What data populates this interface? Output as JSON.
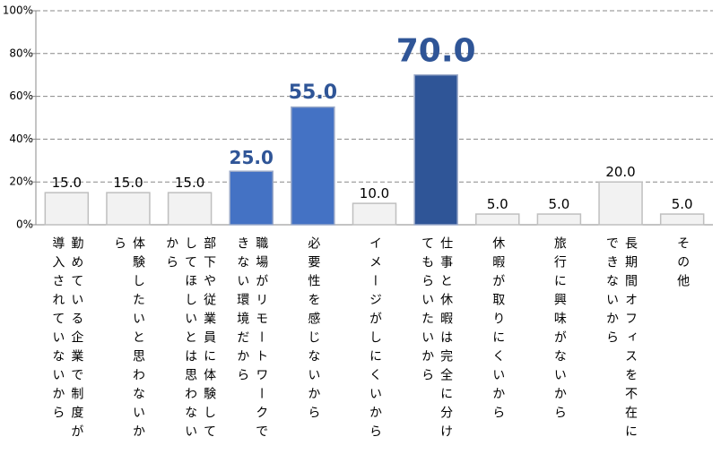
{
  "chart_data": {
    "type": "bar",
    "categories": [
      "勤めている企業で制度が導入されていないから",
      "体験したいと思わないから",
      "部下や従業員に体験してしてほしいとは思わないから",
      "職場がリモートワークできない環境だから",
      "必要性を感じないから",
      "イメージがしにくいから",
      "仕事と休暇は完全に分けてもらいたいから",
      "休暇が取りにくいから",
      "旅行に興味がないから",
      "長期間オフィスを不在にできないから",
      "その他"
    ],
    "values": [
      15,
      15,
      15,
      25,
      55,
      10,
      70,
      5,
      5,
      20,
      5
    ],
    "value_labels": [
      "15.0",
      "15.0",
      "15.0",
      "25.0",
      "55.0",
      "10.0",
      "70.0",
      "5.0",
      "5.0",
      "20.0",
      "5.0"
    ],
    "colors": [
      "#f2f2f2",
      "#f2f2f2",
      "#f2f2f2",
      "#4472c4",
      "#4472c4",
      "#f2f2f2",
      "#2f5597",
      "#f2f2f2",
      "#f2f2f2",
      "#f2f2f2",
      "#f2f2f2"
    ],
    "label_colors": [
      "#000000",
      "#000000",
      "#000000",
      "#2f5597",
      "#2f5597",
      "#000000",
      "#2f5597",
      "#000000",
      "#000000",
      "#000000",
      "#000000"
    ],
    "ylim": [
      0,
      100
    ],
    "yticks": [
      {
        "value": 0,
        "label": "0%"
      },
      {
        "value": 20,
        "label": "20%"
      },
      {
        "value": 40,
        "label": "40%"
      },
      {
        "value": 60,
        "label": "60%"
      },
      {
        "value": 80,
        "label": "80%"
      },
      {
        "value": 100,
        "label": "100%"
      }
    ],
    "grid": true
  }
}
